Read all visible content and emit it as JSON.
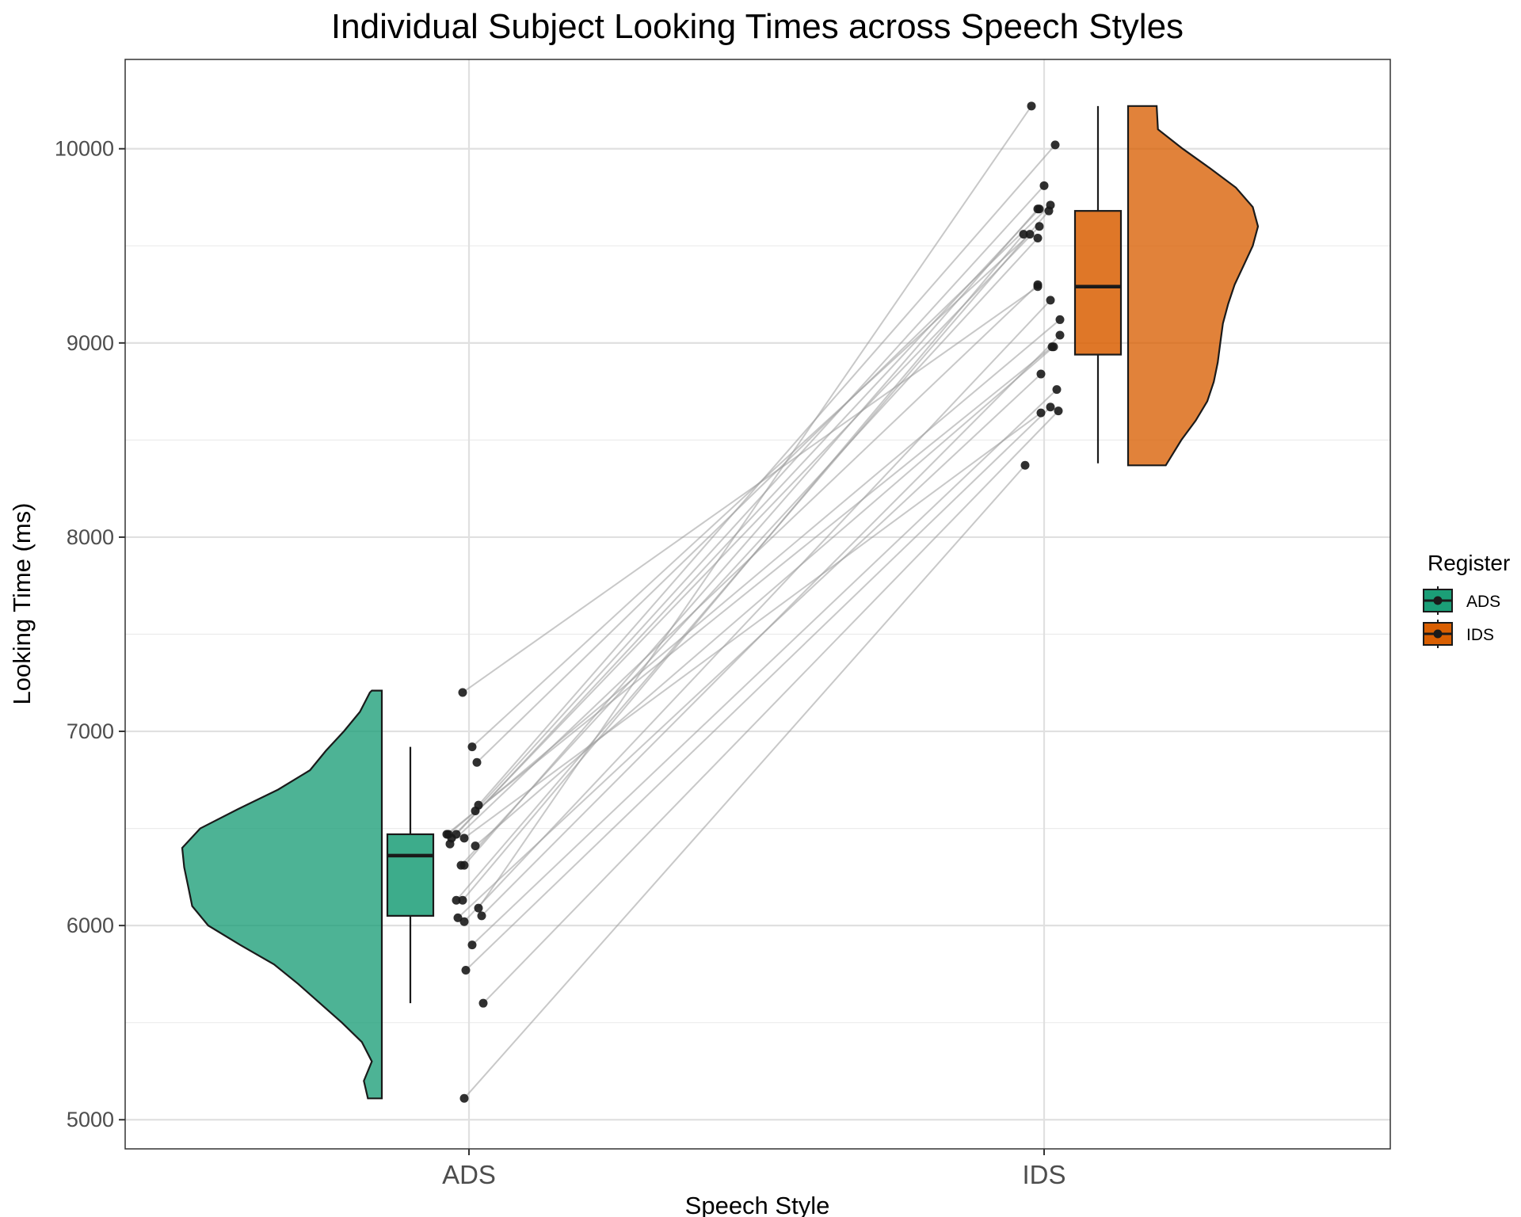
{
  "chart_data": {
    "type": "raincloud",
    "title": "Individual Subject Looking Times across Speech Styles",
    "xlabel": "Speech Style",
    "ylabel": "Looking Time (ms)",
    "categories": [
      "ADS",
      "IDS"
    ],
    "ylim": [
      4850,
      10460
    ],
    "y_ticks": [
      5000,
      6000,
      7000,
      8000,
      9000,
      10000
    ],
    "grid": true,
    "legend": {
      "title": "Register",
      "position": "right",
      "entries": [
        {
          "label": "ADS",
          "color": "#1b9e77"
        },
        {
          "label": "IDS",
          "color": "#d95f02"
        }
      ]
    },
    "boxplots": [
      {
        "name": "ADS",
        "color": "#1b9e77",
        "min": 5600,
        "q1": 6050,
        "median": 6360,
        "q3": 6470,
        "max": 6920
      },
      {
        "name": "IDS",
        "color": "#d95f02",
        "min": 8380,
        "q1": 8940,
        "median": 9290,
        "q3": 9680,
        "max": 10220
      }
    ],
    "densities": [
      {
        "name": "ADS",
        "color": "#1b9e77",
        "y": [
          5110,
          5200,
          5300,
          5400,
          5500,
          5600,
          5700,
          5800,
          5900,
          6000,
          6100,
          6200,
          6300,
          6400,
          6500,
          6600,
          6700,
          6800,
          6900,
          7000,
          7100,
          7200,
          7210
        ],
        "density": [
          0.07,
          0.09,
          0.05,
          0.1,
          0.2,
          0.31,
          0.42,
          0.54,
          0.71,
          0.87,
          0.95,
          0.97,
          0.99,
          1.0,
          0.91,
          0.72,
          0.52,
          0.36,
          0.28,
          0.19,
          0.11,
          0.06,
          0.05
        ]
      },
      {
        "name": "IDS",
        "color": "#d95f02",
        "y": [
          8370,
          8500,
          8600,
          8700,
          8800,
          8900,
          9000,
          9100,
          9200,
          9300,
          9400,
          9500,
          9600,
          9700,
          9800,
          9900,
          10000,
          10100,
          10220
        ],
        "density": [
          0.29,
          0.41,
          0.52,
          0.61,
          0.66,
          0.69,
          0.71,
          0.73,
          0.77,
          0.82,
          0.89,
          0.96,
          1.0,
          0.96,
          0.83,
          0.63,
          0.42,
          0.23,
          0.22
        ]
      }
    ],
    "subjects": [
      {
        "ADS": 6470,
        "IDS": 9690
      },
      {
        "ADS": 6450,
        "IDS": 9600
      },
      {
        "ADS": 6310,
        "IDS": 9540
      },
      {
        "ADS": 7200,
        "IDS": 9290
      },
      {
        "ADS": 6470,
        "IDS": 8980
      },
      {
        "ADS": 6450,
        "IDS": 8640
      },
      {
        "ADS": 6310,
        "IDS": 9690
      },
      {
        "ADS": 6620,
        "IDS": 10020
      },
      {
        "ADS": 6590,
        "IDS": 9810
      },
      {
        "ADS": 6470,
        "IDS": 9120
      },
      {
        "ADS": 6920,
        "IDS": 9560
      },
      {
        "ADS": 6840,
        "IDS": 9710
      },
      {
        "ADS": 6420,
        "IDS": 9300
      },
      {
        "ADS": 6410,
        "IDS": 8980
      },
      {
        "ADS": 6130,
        "IDS": 9680
      },
      {
        "ADS": 6090,
        "IDS": 10220
      },
      {
        "ADS": 6020,
        "IDS": 9220
      },
      {
        "ADS": 6130,
        "IDS": 9560
      },
      {
        "ADS": 6050,
        "IDS": 9040
      },
      {
        "ADS": 6040,
        "IDS": 8840
      },
      {
        "ADS": 5900,
        "IDS": 8760
      },
      {
        "ADS": 5770,
        "IDS": 8670
      },
      {
        "ADS": 5600,
        "IDS": 8650
      },
      {
        "ADS": 5110,
        "IDS": 8370
      }
    ]
  }
}
